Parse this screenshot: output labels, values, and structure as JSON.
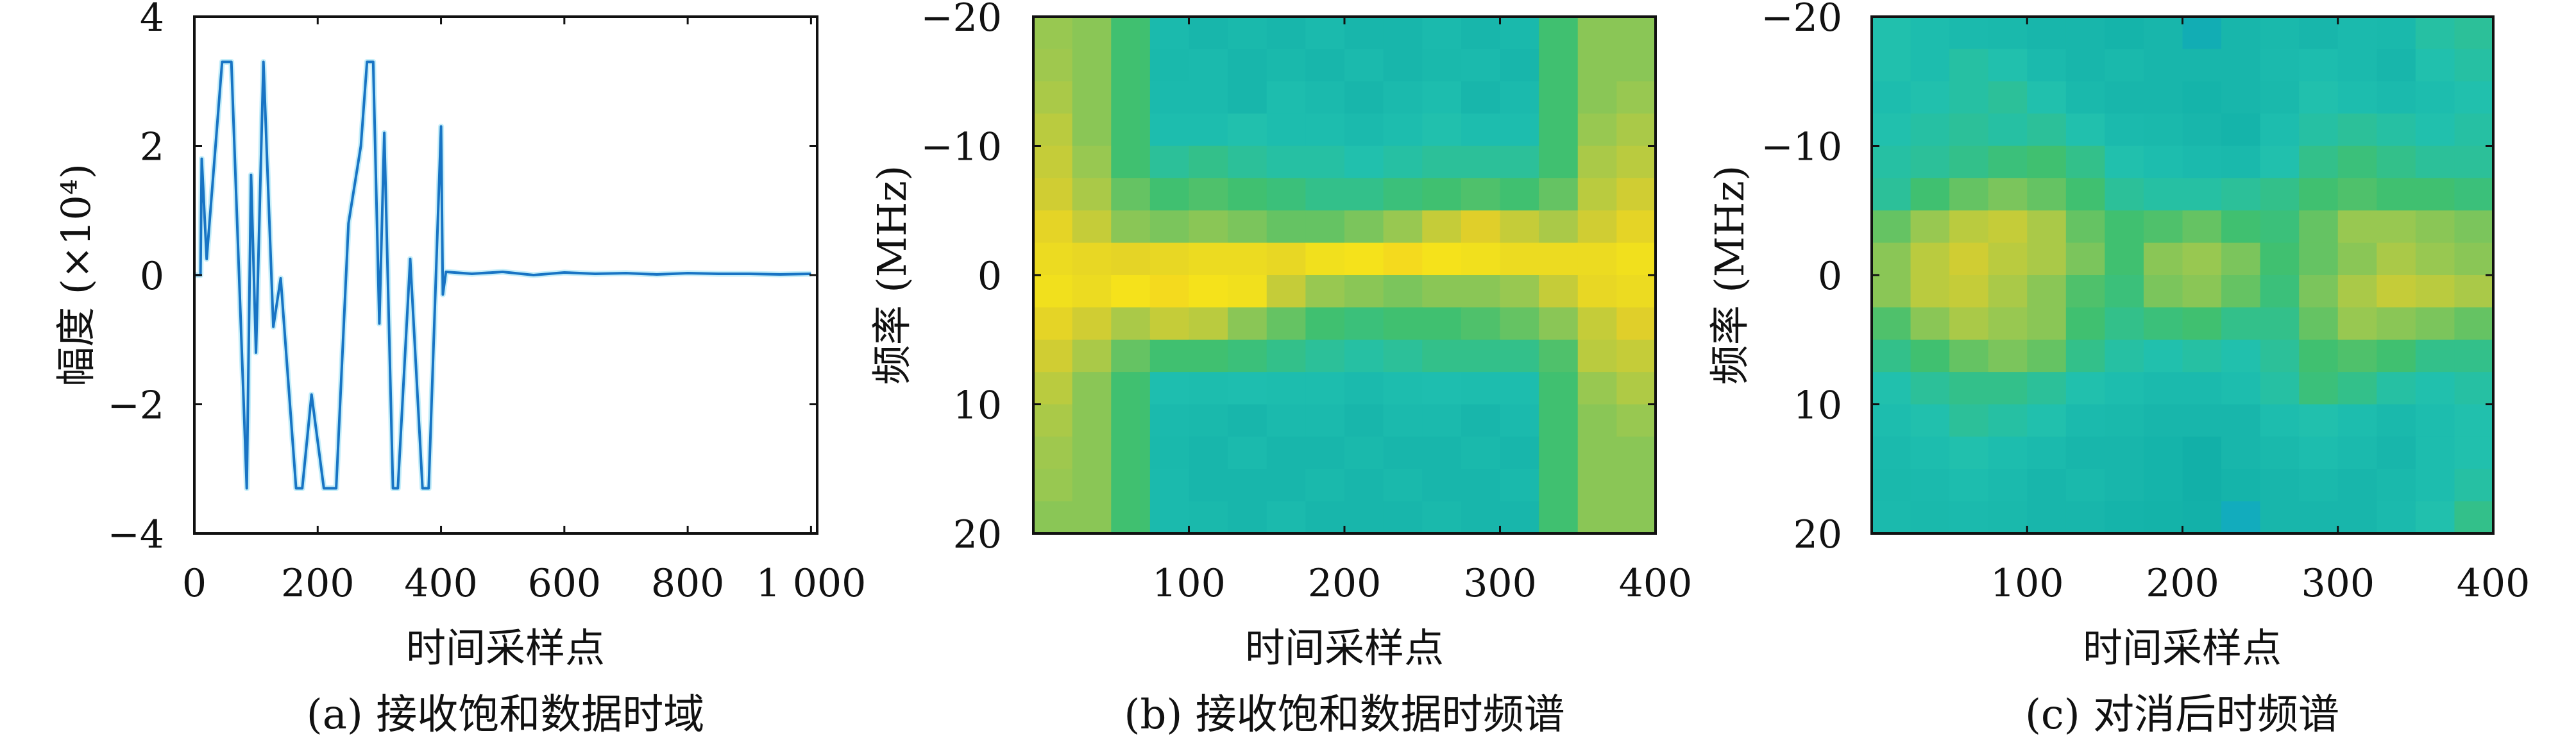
{
  "colormap": [
    "#2a5fe0",
    "#12a5dc",
    "#12b0a8",
    "#20c0b0",
    "#40c070",
    "#9cc850",
    "#e0cf2a",
    "#f5e41a",
    "#f0b030"
  ],
  "line_color": "#1874c4",
  "chart_data": [
    {
      "type": "line",
      "caption": "(a) 接收饱和数据时域",
      "xlabel": "时间采样点",
      "ylabel": "幅度 (×10⁴)",
      "xlim": [
        0,
        1010
      ],
      "ylim": [
        -4,
        4
      ],
      "xticks": [
        0,
        200,
        400,
        600,
        800,
        1000
      ],
      "xtick_labels": [
        "0",
        "200",
        "400",
        "600",
        "800",
        "1 000"
      ],
      "yticks": [
        4,
        2,
        0,
        -2,
        -4
      ],
      "ytick_labels": [
        "4",
        "2",
        "0",
        "−2",
        "−4"
      ],
      "grid": false,
      "x": [
        0,
        10,
        12,
        20,
        45,
        60,
        85,
        92,
        100,
        112,
        128,
        140,
        165,
        175,
        190,
        210,
        230,
        250,
        270,
        280,
        290,
        300,
        308,
        322,
        330,
        350,
        370,
        380,
        400,
        403,
        408,
        450,
        500,
        550,
        600,
        650,
        700,
        750,
        800,
        850,
        900,
        950,
        1000
      ],
      "y": [
        0,
        0,
        1.8,
        0.25,
        3.3,
        3.3,
        -3.3,
        1.55,
        -1.2,
        3.3,
        -0.8,
        -0.05,
        -3.3,
        -3.3,
        -1.85,
        -3.3,
        -3.3,
        0.8,
        2.0,
        3.3,
        3.3,
        -0.75,
        2.2,
        -3.3,
        -3.3,
        0.25,
        -3.3,
        -3.3,
        2.3,
        -0.3,
        0.05,
        0.02,
        0.05,
        0.0,
        0.04,
        0.02,
        0.03,
        0.01,
        0.03,
        0.02,
        0.02,
        0.01,
        0.02
      ]
    },
    {
      "type": "heatmap",
      "caption": "(b) 接收饱和数据时频谱",
      "xlabel": "时间采样点",
      "ylabel": "频率 (MHz)",
      "xlim": [
        0,
        400
      ],
      "ylim": [
        -20,
        20
      ],
      "xticks": [
        100,
        200,
        300,
        400
      ],
      "xtick_labels": [
        "100",
        "200",
        "300",
        "400"
      ],
      "yticks": [
        -20,
        -10,
        0,
        10,
        20
      ],
      "ytick_labels": [
        "−20",
        "−10",
        "0",
        "10",
        "20"
      ],
      "values": [
        [
          0.62,
          0.6,
          0.5,
          0.33,
          0.3,
          0.32,
          0.3,
          0.33,
          0.3,
          0.3,
          0.33,
          0.3,
          0.32,
          0.5,
          0.6,
          0.6
        ],
        [
          0.63,
          0.6,
          0.5,
          0.32,
          0.33,
          0.3,
          0.32,
          0.3,
          0.33,
          0.3,
          0.32,
          0.33,
          0.3,
          0.5,
          0.6,
          0.6
        ],
        [
          0.65,
          0.6,
          0.5,
          0.33,
          0.33,
          0.3,
          0.35,
          0.33,
          0.3,
          0.33,
          0.35,
          0.3,
          0.33,
          0.5,
          0.6,
          0.62
        ],
        [
          0.68,
          0.6,
          0.5,
          0.35,
          0.35,
          0.38,
          0.35,
          0.35,
          0.33,
          0.35,
          0.38,
          0.35,
          0.35,
          0.5,
          0.62,
          0.65
        ],
        [
          0.7,
          0.62,
          0.5,
          0.42,
          0.45,
          0.42,
          0.4,
          0.4,
          0.38,
          0.4,
          0.42,
          0.42,
          0.42,
          0.5,
          0.65,
          0.68
        ],
        [
          0.72,
          0.65,
          0.55,
          0.5,
          0.52,
          0.5,
          0.48,
          0.45,
          0.45,
          0.48,
          0.5,
          0.52,
          0.5,
          0.55,
          0.68,
          0.72
        ],
        [
          0.78,
          0.7,
          0.6,
          0.58,
          0.6,
          0.58,
          0.55,
          0.55,
          0.58,
          0.62,
          0.7,
          0.75,
          0.7,
          0.65,
          0.72,
          0.78
        ],
        [
          0.82,
          0.8,
          0.78,
          0.8,
          0.82,
          0.82,
          0.8,
          0.85,
          0.88,
          0.9,
          0.88,
          0.85,
          0.82,
          0.82,
          0.82,
          0.85
        ],
        [
          0.85,
          0.82,
          0.88,
          0.9,
          0.88,
          0.85,
          0.7,
          0.62,
          0.6,
          0.58,
          0.6,
          0.6,
          0.62,
          0.7,
          0.8,
          0.82
        ],
        [
          0.78,
          0.72,
          0.65,
          0.7,
          0.68,
          0.6,
          0.55,
          0.5,
          0.48,
          0.5,
          0.5,
          0.52,
          0.55,
          0.6,
          0.7,
          0.75
        ],
        [
          0.72,
          0.65,
          0.55,
          0.5,
          0.5,
          0.48,
          0.45,
          0.42,
          0.4,
          0.42,
          0.45,
          0.45,
          0.45,
          0.52,
          0.68,
          0.7
        ],
        [
          0.68,
          0.6,
          0.5,
          0.36,
          0.35,
          0.36,
          0.35,
          0.35,
          0.33,
          0.35,
          0.36,
          0.35,
          0.35,
          0.5,
          0.62,
          0.66
        ],
        [
          0.65,
          0.6,
          0.5,
          0.33,
          0.32,
          0.3,
          0.33,
          0.33,
          0.3,
          0.33,
          0.33,
          0.3,
          0.33,
          0.5,
          0.6,
          0.62
        ],
        [
          0.63,
          0.6,
          0.5,
          0.32,
          0.3,
          0.33,
          0.3,
          0.3,
          0.32,
          0.3,
          0.3,
          0.32,
          0.3,
          0.5,
          0.6,
          0.6
        ],
        [
          0.62,
          0.6,
          0.5,
          0.33,
          0.3,
          0.3,
          0.3,
          0.32,
          0.3,
          0.32,
          0.3,
          0.3,
          0.32,
          0.5,
          0.6,
          0.6
        ],
        [
          0.6,
          0.6,
          0.5,
          0.33,
          0.32,
          0.3,
          0.33,
          0.3,
          0.3,
          0.3,
          0.32,
          0.3,
          0.3,
          0.5,
          0.6,
          0.6
        ]
      ]
    },
    {
      "type": "heatmap",
      "caption": "(c) 对消后时频谱",
      "xlabel": "时间采样点",
      "ylabel": "频率 (MHz)",
      "xlim": [
        0,
        400
      ],
      "ylim": [
        -20,
        20
      ],
      "xticks": [
        100,
        200,
        300,
        400
      ],
      "xtick_labels": [
        "100",
        "200",
        "300",
        "400"
      ],
      "yticks": [
        -20,
        -10,
        0,
        10,
        20
      ],
      "ytick_labels": [
        "−20",
        "−10",
        "0",
        "10",
        "20"
      ],
      "values": [
        [
          0.38,
          0.35,
          0.33,
          0.32,
          0.3,
          0.3,
          0.28,
          0.3,
          0.22,
          0.3,
          0.32,
          0.3,
          0.33,
          0.32,
          0.4,
          0.42
        ],
        [
          0.38,
          0.35,
          0.4,
          0.38,
          0.33,
          0.3,
          0.32,
          0.3,
          0.3,
          0.3,
          0.33,
          0.35,
          0.33,
          0.3,
          0.38,
          0.4
        ],
        [
          0.35,
          0.38,
          0.4,
          0.42,
          0.38,
          0.32,
          0.3,
          0.3,
          0.28,
          0.3,
          0.32,
          0.38,
          0.35,
          0.33,
          0.35,
          0.38
        ],
        [
          0.38,
          0.4,
          0.42,
          0.4,
          0.42,
          0.38,
          0.33,
          0.32,
          0.3,
          0.28,
          0.35,
          0.4,
          0.42,
          0.4,
          0.38,
          0.4
        ],
        [
          0.4,
          0.42,
          0.45,
          0.48,
          0.5,
          0.45,
          0.38,
          0.35,
          0.33,
          0.32,
          0.38,
          0.45,
          0.48,
          0.45,
          0.42,
          0.42
        ],
        [
          0.42,
          0.5,
          0.55,
          0.58,
          0.55,
          0.5,
          0.42,
          0.4,
          0.4,
          0.42,
          0.45,
          0.5,
          0.52,
          0.5,
          0.5,
          0.48
        ],
        [
          0.55,
          0.62,
          0.68,
          0.7,
          0.65,
          0.55,
          0.5,
          0.52,
          0.55,
          0.5,
          0.48,
          0.55,
          0.62,
          0.62,
          0.6,
          0.58
        ],
        [
          0.6,
          0.68,
          0.72,
          0.68,
          0.65,
          0.58,
          0.5,
          0.6,
          0.62,
          0.58,
          0.5,
          0.55,
          0.6,
          0.65,
          0.62,
          0.6
        ],
        [
          0.6,
          0.68,
          0.7,
          0.65,
          0.6,
          0.52,
          0.48,
          0.58,
          0.6,
          0.55,
          0.48,
          0.58,
          0.65,
          0.7,
          0.68,
          0.65
        ],
        [
          0.52,
          0.6,
          0.65,
          0.62,
          0.6,
          0.5,
          0.45,
          0.48,
          0.5,
          0.45,
          0.45,
          0.55,
          0.62,
          0.6,
          0.58,
          0.55
        ],
        [
          0.45,
          0.5,
          0.55,
          0.58,
          0.55,
          0.45,
          0.4,
          0.38,
          0.4,
          0.38,
          0.42,
          0.5,
          0.52,
          0.5,
          0.45,
          0.45
        ],
        [
          0.38,
          0.42,
          0.45,
          0.45,
          0.42,
          0.38,
          0.35,
          0.33,
          0.33,
          0.35,
          0.4,
          0.48,
          0.45,
          0.4,
          0.38,
          0.4
        ],
        [
          0.35,
          0.38,
          0.42,
          0.4,
          0.38,
          0.33,
          0.32,
          0.3,
          0.3,
          0.3,
          0.35,
          0.38,
          0.35,
          0.32,
          0.35,
          0.38
        ],
        [
          0.33,
          0.35,
          0.38,
          0.35,
          0.33,
          0.3,
          0.3,
          0.28,
          0.25,
          0.3,
          0.32,
          0.35,
          0.33,
          0.3,
          0.35,
          0.38
        ],
        [
          0.32,
          0.33,
          0.35,
          0.33,
          0.3,
          0.32,
          0.3,
          0.28,
          0.25,
          0.28,
          0.3,
          0.32,
          0.3,
          0.32,
          0.35,
          0.4
        ],
        [
          0.33,
          0.32,
          0.33,
          0.32,
          0.3,
          0.3,
          0.28,
          0.27,
          0.26,
          0.2,
          0.3,
          0.3,
          0.3,
          0.33,
          0.38,
          0.45
        ]
      ]
    }
  ]
}
